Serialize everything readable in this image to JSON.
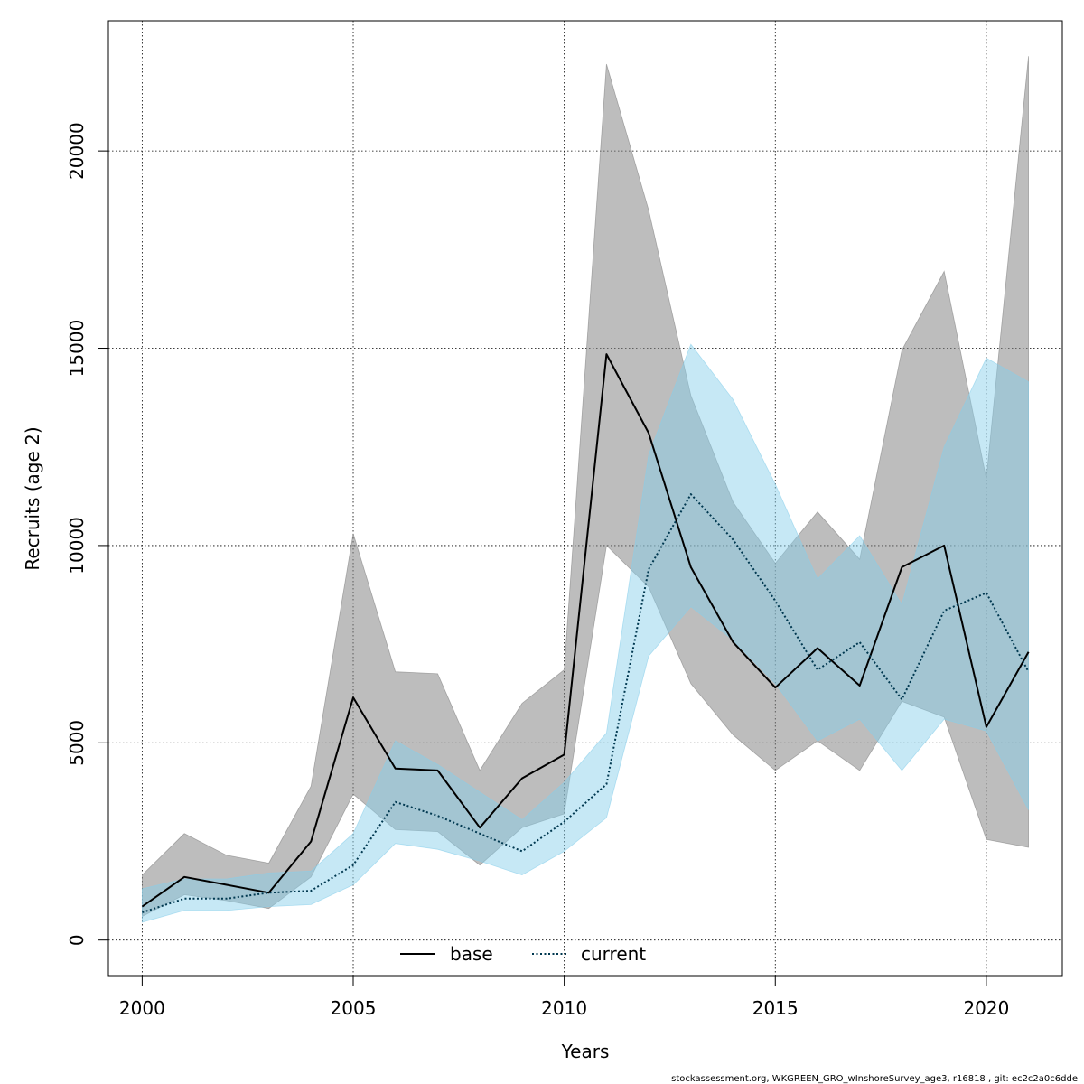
{
  "chart_data": {
    "type": "line",
    "xlabel": "Years",
    "ylabel": "Recruits (age 2)",
    "xlim": [
      1999.2,
      2021.8
    ],
    "ylim": [
      -900,
      23300
    ],
    "x_ticks": [
      2000,
      2005,
      2010,
      2015,
      2020
    ],
    "y_ticks": [
      0,
      5000,
      10000,
      15000,
      20000
    ],
    "grid": true,
    "legend_position": "bottom-center",
    "x": [
      2000,
      2001,
      2002,
      2003,
      2004,
      2005,
      2006,
      2007,
      2008,
      2009,
      2010,
      2011,
      2012,
      2013,
      2014,
      2015,
      2016,
      2017,
      2018,
      2019,
      2020,
      2021
    ],
    "series": [
      {
        "name": "base",
        "line_style": "solid",
        "color": "#000000",
        "band_color": "#808080",
        "values": [
          850,
          1600,
          1400,
          1200,
          2500,
          6150,
          4350,
          4300,
          2850,
          4100,
          4700,
          14850,
          12850,
          9450,
          7550,
          6400,
          7400,
          6450,
          9450,
          10000,
          5400,
          7300
        ],
        "lower": [
          600,
          1150,
          1000,
          800,
          1600,
          3700,
          2800,
          2750,
          1900,
          2850,
          3200,
          10000,
          8950,
          6500,
          5200,
          4300,
          5050,
          4300,
          6050,
          5650,
          2550,
          2350
        ],
        "upper": [
          1650,
          2700,
          2150,
          1950,
          3900,
          10300,
          6800,
          6750,
          4300,
          6000,
          6850,
          22200,
          18500,
          13800,
          11100,
          9550,
          10850,
          9650,
          14950,
          16950,
          11700,
          22400
        ]
      },
      {
        "name": "current",
        "line_style": "dotted",
        "color": "#003850",
        "band_color": "#87ceeb",
        "values": [
          700,
          1050,
          1050,
          1200,
          1250,
          1900,
          3500,
          3150,
          2700,
          2250,
          3000,
          3950,
          9400,
          11300,
          10150,
          8600,
          6850,
          7550,
          6100,
          8350,
          8800,
          6800
        ],
        "lower": [
          450,
          750,
          750,
          850,
          900,
          1400,
          2450,
          2300,
          2000,
          1650,
          2250,
          3100,
          7200,
          8450,
          7600,
          6500,
          5050,
          5600,
          4300,
          5600,
          5300,
          3300
        ],
        "upper": [
          1300,
          1550,
          1550,
          1700,
          1750,
          2700,
          5050,
          4450,
          3750,
          3050,
          4000,
          5250,
          12300,
          15100,
          13700,
          11550,
          9150,
          10250,
          8500,
          12500,
          14750,
          14150
        ]
      }
    ]
  },
  "footer": "stockassessment.org, WKGREEN_GRO_wInshoreSurvey_age3, r16818 , git: ec2c2a0c6dde"
}
